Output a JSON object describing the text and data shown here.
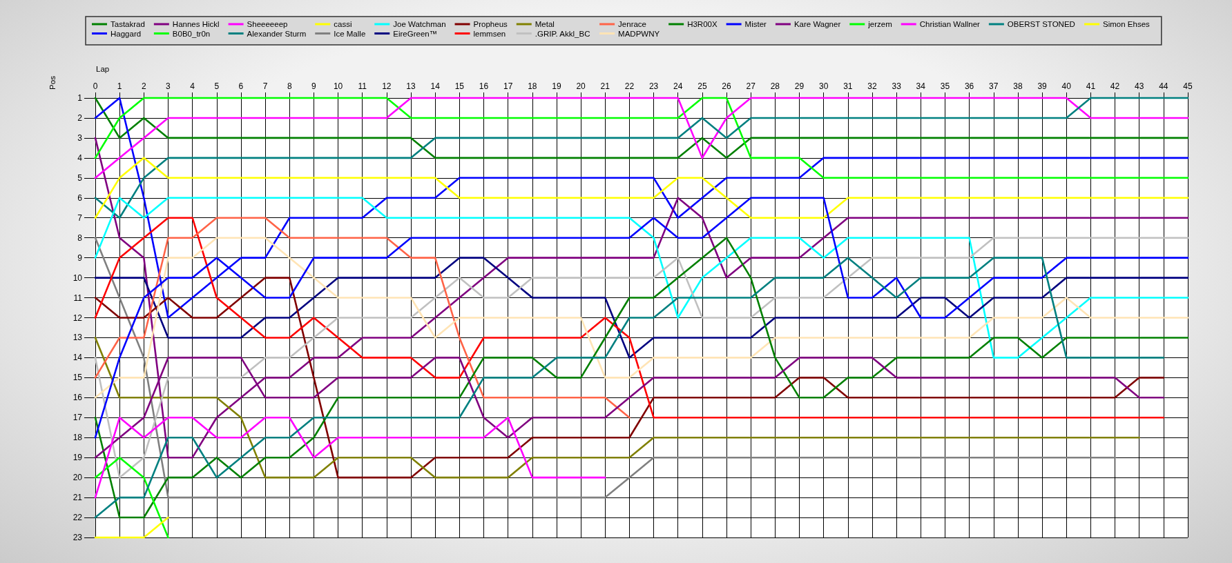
{
  "chart_data": {
    "type": "line",
    "xlabel": "Lap",
    "ylabel": "Pos",
    "x": [
      0,
      1,
      2,
      3,
      4,
      5,
      6,
      7,
      8,
      9,
      10,
      11,
      12,
      13,
      14,
      15,
      16,
      17,
      18,
      19,
      20,
      21,
      22,
      23,
      24,
      25,
      26,
      27,
      28,
      29,
      30,
      31,
      32,
      33,
      34,
      35,
      36,
      37,
      38,
      39,
      40,
      41,
      42,
      43,
      44,
      45
    ],
    "xlim": [
      0,
      45
    ],
    "xticks": [
      0,
      1,
      2,
      3,
      4,
      5,
      6,
      7,
      8,
      9,
      10,
      11,
      12,
      13,
      14,
      15,
      16,
      17,
      18,
      19,
      20,
      21,
      22,
      23,
      24,
      25,
      26,
      27,
      28,
      29,
      30,
      31,
      32,
      33,
      34,
      35,
      36,
      37,
      38,
      39,
      40,
      41,
      42,
      43,
      44,
      45
    ],
    "ylim": [
      23,
      1
    ],
    "yticks": [
      1,
      2,
      3,
      4,
      5,
      6,
      7,
      8,
      9,
      10,
      11,
      12,
      13,
      14,
      15,
      16,
      17,
      18,
      19,
      20,
      21,
      22,
      23
    ],
    "grid": true,
    "legend": "top",
    "series": [
      {
        "name": "Tastakrad",
        "color": "#008000",
        "values": [
          1,
          3,
          2,
          3,
          3,
          3,
          3,
          3,
          3,
          3,
          3,
          3,
          3,
          3,
          4,
          4,
          4,
          4,
          4,
          4,
          4,
          4,
          4,
          4,
          4,
          3,
          4,
          3,
          3,
          3,
          3,
          3,
          3,
          3,
          3,
          3,
          3,
          3,
          3,
          3,
          3,
          3,
          3,
          3,
          3,
          3
        ]
      },
      {
        "name": "Haggard",
        "color": "#0000ff",
        "values": [
          2,
          1,
          6,
          12,
          11,
          10,
          9,
          9,
          7,
          7,
          7,
          7,
          6,
          6,
          6,
          5,
          5,
          5,
          5,
          5,
          5,
          5,
          5,
          5,
          7,
          6,
          5,
          5,
          5,
          5,
          4,
          4,
          4,
          4,
          4,
          4,
          4,
          4,
          4,
          4,
          4,
          4,
          4,
          4,
          4,
          4
        ]
      },
      {
        "name": "Hannes Hickl",
        "color": "#800080",
        "values": [
          3,
          8,
          9,
          19,
          19,
          17,
          16,
          15,
          15,
          14,
          14,
          13,
          13,
          13,
          12,
          11,
          10,
          9,
          9,
          9,
          9,
          9,
          9,
          9,
          6,
          7,
          10,
          9,
          9,
          9,
          8,
          7,
          7,
          7,
          7,
          7,
          7,
          7,
          7,
          7,
          7,
          7,
          7,
          7,
          7,
          7
        ]
      },
      {
        "name": "B0B0_tr0n",
        "color": "#00ff00",
        "values": [
          4,
          2,
          1,
          1,
          1,
          1,
          1,
          1,
          1,
          1,
          1,
          1,
          1,
          2,
          2,
          2,
          2,
          2,
          2,
          2,
          2,
          2,
          2,
          2,
          2,
          1,
          1,
          4,
          4,
          4,
          5,
          5,
          5,
          5,
          5,
          5,
          5,
          5,
          5,
          5,
          5,
          5,
          5,
          5,
          5,
          5
        ]
      },
      {
        "name": "Sheeeeeep",
        "color": "#ff00ff",
        "values": [
          5,
          4,
          3,
          2,
          2,
          2,
          2,
          2,
          2,
          2,
          2,
          2,
          2,
          1,
          1,
          1,
          1,
          1,
          1,
          1,
          1,
          1,
          1,
          1,
          1,
          4,
          2,
          1,
          1,
          1,
          1,
          1,
          1,
          1,
          1,
          1,
          1,
          1,
          1,
          1,
          1,
          2,
          2,
          2,
          2,
          2
        ]
      },
      {
        "name": "Alexander Sturm",
        "color": "#008080",
        "values": [
          6,
          7,
          5,
          4,
          4,
          4,
          4,
          4,
          4,
          4,
          4,
          4,
          4,
          4,
          3,
          3,
          3,
          3,
          3,
          3,
          3,
          3,
          3,
          3,
          3,
          2,
          3,
          2,
          2,
          2,
          2,
          2,
          2,
          2,
          2,
          2,
          2,
          2,
          2,
          2,
          2,
          1,
          1,
          1,
          1,
          1
        ]
      },
      {
        "name": "cassi",
        "color": "#ffff00",
        "values": [
          7,
          5,
          4,
          5,
          5,
          5,
          5,
          5,
          5,
          5,
          5,
          5,
          5,
          5,
          5,
          6,
          6,
          6,
          6,
          6,
          6,
          6,
          6,
          6,
          5,
          5,
          6,
          7,
          7,
          7,
          7,
          6,
          6,
          6,
          6,
          6,
          6,
          6,
          6,
          6,
          6,
          6,
          6,
          6,
          6,
          6
        ]
      },
      {
        "name": "Ice Malle",
        "color": "#808080",
        "values": [
          8,
          11,
          14,
          21,
          21,
          21,
          21,
          21,
          21,
          21,
          21,
          21,
          21,
          21,
          21,
          21,
          21,
          21,
          21,
          21,
          21,
          21,
          20,
          19,
          19,
          19,
          19,
          19,
          19,
          19,
          19,
          19,
          19,
          19,
          19,
          19,
          19,
          19,
          19,
          19,
          19,
          19,
          19,
          null,
          null,
          null
        ]
      },
      {
        "name": "Joe Watchman",
        "color": "#00ffff",
        "values": [
          9,
          6,
          7,
          6,
          6,
          6,
          6,
          6,
          6,
          6,
          6,
          6,
          7,
          7,
          7,
          7,
          7,
          7,
          7,
          7,
          7,
          7,
          7,
          8,
          12,
          10,
          9,
          8,
          8,
          8,
          9,
          8,
          8,
          8,
          8,
          8,
          8,
          14,
          14,
          13,
          12,
          11,
          11,
          11,
          11,
          11
        ]
      },
      {
        "name": "EireGreen™",
        "color": "#000080",
        "values": [
          10,
          10,
          10,
          13,
          13,
          13,
          13,
          12,
          12,
          11,
          10,
          10,
          10,
          10,
          10,
          9,
          9,
          10,
          11,
          11,
          11,
          11,
          14,
          13,
          13,
          13,
          13,
          13,
          12,
          12,
          12,
          12,
          12,
          12,
          11,
          11,
          12,
          11,
          11,
          11,
          10,
          10,
          10,
          10,
          10,
          10
        ]
      },
      {
        "name": "Propheus",
        "color": "#800000",
        "values": [
          11,
          12,
          12,
          11,
          12,
          12,
          11,
          10,
          10,
          15,
          20,
          20,
          20,
          20,
          19,
          19,
          19,
          19,
          18,
          18,
          18,
          18,
          18,
          16,
          16,
          16,
          16,
          16,
          16,
          15,
          15,
          16,
          16,
          16,
          16,
          16,
          16,
          16,
          16,
          16,
          16,
          16,
          16,
          15,
          15,
          null
        ]
      },
      {
        "name": "lemmsen",
        "color": "#ff0000",
        "values": [
          12,
          9,
          8,
          7,
          7,
          11,
          12,
          13,
          13,
          12,
          13,
          14,
          14,
          14,
          15,
          15,
          13,
          13,
          13,
          13,
          13,
          12,
          13,
          17,
          17,
          17,
          17,
          17,
          17,
          17,
          17,
          17,
          17,
          17,
          17,
          17,
          17,
          17,
          17,
          17,
          17,
          17,
          17,
          17,
          17,
          null
        ]
      },
      {
        "name": "Metal",
        "color": "#808000",
        "values": [
          13,
          16,
          16,
          16,
          16,
          16,
          17,
          20,
          20,
          20,
          19,
          19,
          19,
          19,
          20,
          20,
          20,
          20,
          19,
          19,
          19,
          19,
          19,
          18,
          18,
          18,
          18,
          18,
          18,
          18,
          18,
          18,
          18,
          18,
          18,
          18,
          18,
          18,
          18,
          18,
          18,
          18,
          18,
          18,
          null,
          null
        ]
      },
      {
        "name": ".GRIP. Akkl_BC",
        "color": "#c0c0c0",
        "values": [
          14,
          20,
          19,
          15,
          15,
          15,
          15,
          14,
          14,
          13,
          12,
          12,
          12,
          12,
          11,
          10,
          11,
          11,
          10,
          10,
          10,
          10,
          10,
          10,
          9,
          12,
          12,
          12,
          11,
          11,
          11,
          10,
          9,
          9,
          9,
          9,
          9,
          8,
          8,
          8,
          8,
          8,
          8,
          8,
          8,
          8
        ]
      },
      {
        "name": "Jenrace",
        "color": "#ff6347",
        "values": [
          15,
          13,
          13,
          8,
          8,
          7,
          7,
          7,
          8,
          8,
          8,
          8,
          8,
          9,
          9,
          13,
          16,
          16,
          16,
          16,
          16,
          16,
          17,
          null,
          null,
          null,
          null,
          null,
          null,
          null,
          null,
          null,
          null,
          null,
          null,
          null,
          null,
          null,
          null,
          null,
          null,
          null,
          null,
          null,
          null,
          null
        ]
      },
      {
        "name": "MADPWNY",
        "color": "#ffe4b5",
        "values": [
          16,
          15,
          15,
          9,
          9,
          8,
          8,
          8,
          9,
          10,
          11,
          11,
          11,
          11,
          13,
          12,
          12,
          12,
          12,
          12,
          12,
          15,
          15,
          14,
          14,
          14,
          14,
          14,
          13,
          13,
          13,
          13,
          13,
          13,
          13,
          13,
          13,
          12,
          12,
          12,
          11,
          12,
          12,
          12,
          12,
          12
        ]
      },
      {
        "name": "H3R00X",
        "color": "#008000",
        "values": [
          17,
          22,
          22,
          20,
          20,
          19,
          20,
          19,
          19,
          18,
          16,
          16,
          16,
          16,
          16,
          16,
          14,
          14,
          14,
          15,
          15,
          13,
          11,
          11,
          10,
          9,
          8,
          10,
          14,
          16,
          16,
          15,
          15,
          14,
          14,
          14,
          14,
          13,
          13,
          14,
          13,
          13,
          13,
          13,
          13,
          13
        ]
      },
      {
        "name": "Mister",
        "color": "#0000ff",
        "values": [
          18,
          14,
          11,
          10,
          10,
          9,
          10,
          11,
          11,
          9,
          9,
          9,
          9,
          8,
          8,
          8,
          8,
          8,
          8,
          8,
          8,
          8,
          8,
          7,
          8,
          8,
          7,
          6,
          6,
          6,
          6,
          11,
          11,
          10,
          12,
          12,
          11,
          10,
          10,
          10,
          9,
          9,
          9,
          9,
          9,
          9
        ]
      },
      {
        "name": "Kare Wagner",
        "color": "#800080",
        "values": [
          19,
          18,
          17,
          14,
          14,
          14,
          14,
          16,
          16,
          16,
          15,
          15,
          15,
          15,
          14,
          14,
          17,
          18,
          17,
          17,
          17,
          17,
          16,
          15,
          15,
          15,
          15,
          15,
          15,
          14,
          14,
          14,
          14,
          15,
          15,
          15,
          15,
          15,
          15,
          15,
          15,
          15,
          15,
          16,
          16,
          null
        ]
      },
      {
        "name": "jerzem",
        "color": "#00ff00",
        "values": [
          20,
          19,
          20,
          23,
          null,
          null,
          null,
          null,
          null,
          null,
          null,
          null,
          null,
          null,
          null,
          null,
          null,
          null,
          null,
          null,
          null,
          null,
          null,
          null,
          null,
          null,
          null,
          null,
          null,
          null,
          null,
          null,
          null,
          null,
          null,
          null,
          null,
          null,
          null,
          null,
          null,
          null,
          null,
          null,
          null,
          null
        ]
      },
      {
        "name": "Christian Wallner",
        "color": "#ff00ff",
        "values": [
          21,
          17,
          18,
          17,
          17,
          18,
          18,
          17,
          17,
          19,
          18,
          18,
          18,
          18,
          18,
          18,
          18,
          17,
          20,
          20,
          20,
          20,
          null,
          null,
          null,
          null,
          null,
          null,
          null,
          null,
          null,
          null,
          null,
          null,
          null,
          null,
          null,
          null,
          null,
          null,
          null,
          null,
          null,
          null,
          null,
          null
        ]
      },
      {
        "name": "OBERST STONED",
        "color": "#008080",
        "values": [
          22,
          21,
          21,
          18,
          18,
          20,
          19,
          18,
          18,
          17,
          17,
          17,
          17,
          17,
          17,
          17,
          15,
          15,
          15,
          14,
          14,
          14,
          12,
          12,
          11,
          11,
          11,
          11,
          10,
          10,
          10,
          9,
          10,
          11,
          10,
          10,
          10,
          9,
          9,
          9,
          14,
          14,
          14,
          14,
          14,
          null
        ]
      },
      {
        "name": "Simon Ehses",
        "color": "#ffff00",
        "values": [
          23,
          23,
          23,
          22,
          null,
          null,
          null,
          null,
          null,
          null,
          null,
          null,
          null,
          null,
          null,
          null,
          null,
          null,
          null,
          null,
          null,
          null,
          null,
          null,
          null,
          null,
          null,
          null,
          null,
          null,
          null,
          null,
          null,
          null,
          null,
          null,
          null,
          null,
          null,
          null,
          null,
          null,
          null,
          null,
          null,
          null
        ]
      }
    ]
  }
}
